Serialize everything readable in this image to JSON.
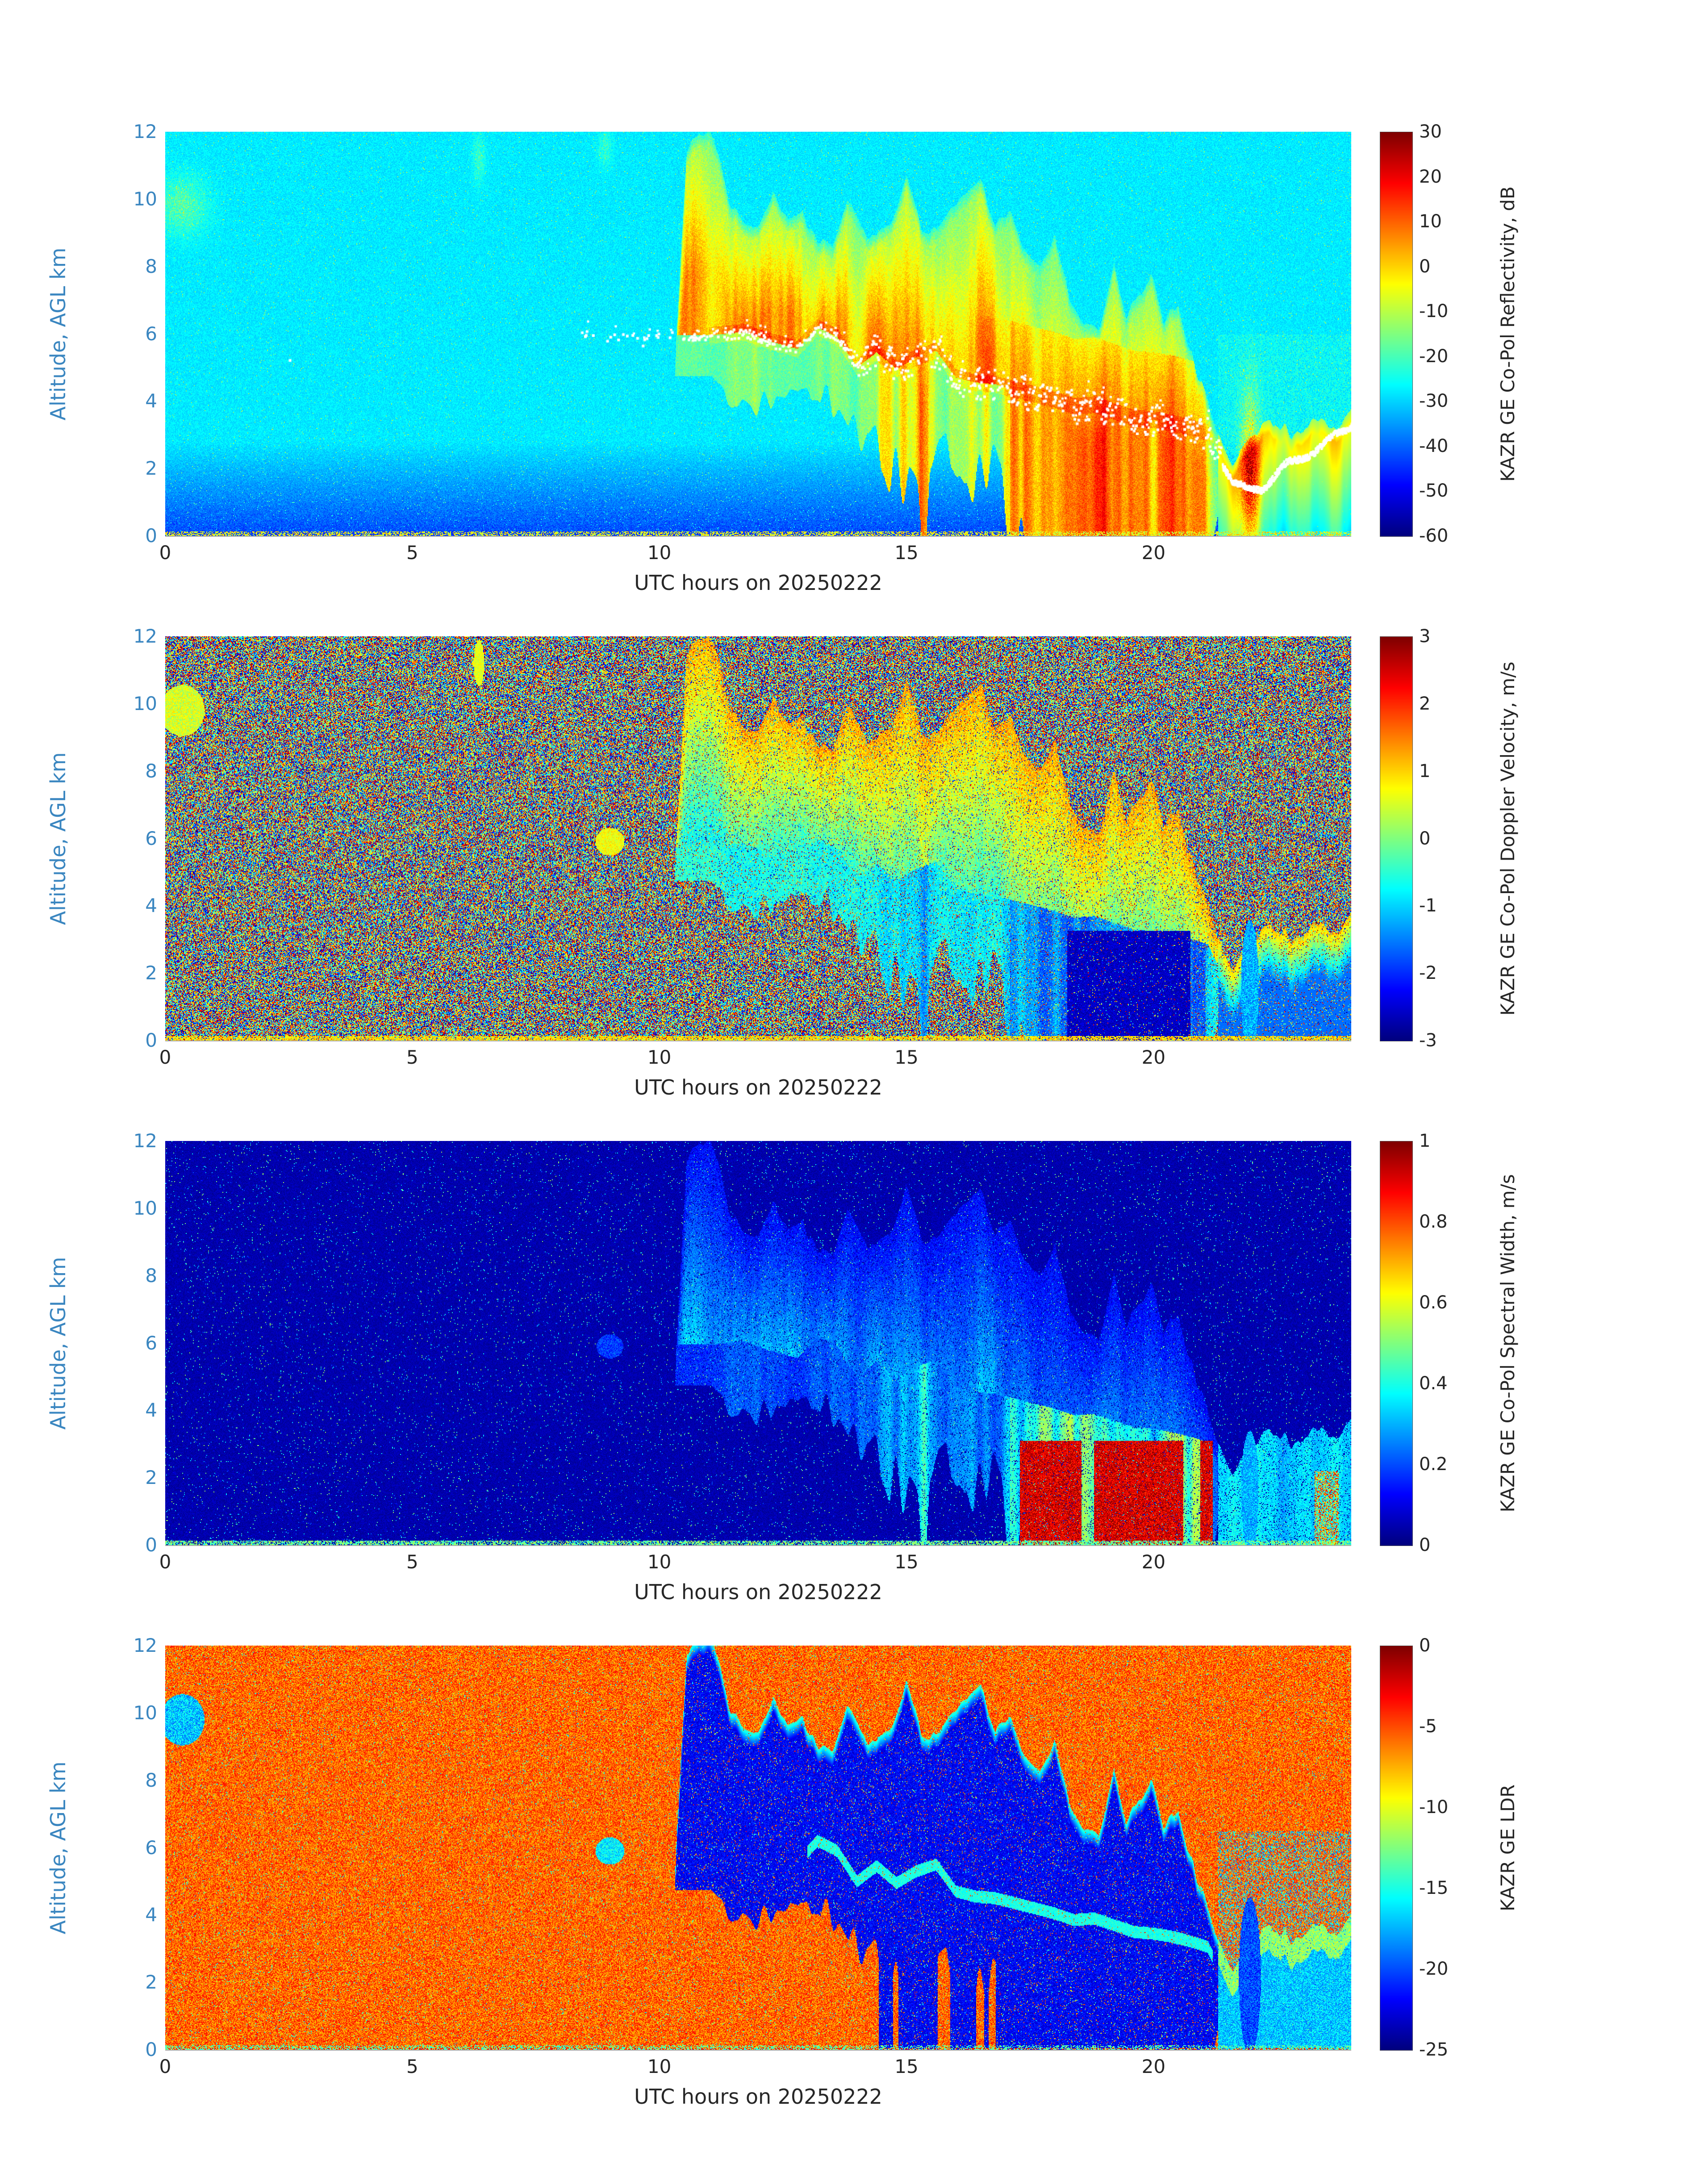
{
  "figure": {
    "background": "#ffffff",
    "y_axis_text_color": "#3a86c0",
    "x_axis_text_color": "#262626",
    "colormap": "jet"
  },
  "chart_data": [
    {
      "type": "heatmap",
      "kind": "reflectivity",
      "xlabel": "UTC hours on 20250222",
      "ylabel": "Altitude, AGL km",
      "colorbar_label": "KAZR GE Co-Pol Reflectivity, dB",
      "x_range": [
        0,
        24
      ],
      "y_range": [
        0,
        12
      ],
      "color_range": [
        -60,
        30
      ],
      "x_ticks": [
        0,
        5,
        10,
        15,
        20
      ],
      "y_ticks": [
        0,
        2,
        4,
        6,
        8,
        10,
        12
      ],
      "colorbar_ticks": [
        30,
        20,
        10,
        0,
        -10,
        -20,
        -30,
        -40,
        -50,
        -60
      ],
      "colormap": "jet",
      "features": [
        "Clear-air cyan background near -28 dB above 3 km",
        "Boundary-layer gradient darkening to about -45 dB below 2.5 km",
        "Cloud and precipitation system from 10.5 to 21.2 UTC with tops 8-12 km",
        "Yellow-orange reflectivity band (0 to +10 dB) around and above the melting layer",
        "Red convective cores +10 to +25 dB between 17 and 21 UTC below 6 km",
        "White melting-layer dots descending from 6 km near 8.5 UTC to 3 km near 21 UTC",
        "White cloud-base line dipping to 1.5 km at 21.6 UTC then rising to 3.4 km at 24 UTC",
        "Shallow orange-topped cloud below 3.5 km from 21.5 to 24 UTC",
        "Small cyan-green cloud patch near 0-0.7 UTC at 9-10.5 km"
      ]
    },
    {
      "type": "heatmap",
      "kind": "velocity",
      "xlabel": "UTC hours on 20250222",
      "ylabel": "Altitude, AGL km",
      "colorbar_label": "KAZR GE Co-Pol Doppler Velocity, m/s",
      "x_range": [
        0,
        24
      ],
      "y_range": [
        0,
        12
      ],
      "color_range": [
        -3,
        3
      ],
      "x_ticks": [
        0,
        5,
        10,
        15,
        20
      ],
      "y_ticks": [
        0,
        2,
        4,
        6,
        8,
        10,
        12
      ],
      "colorbar_ticks": [
        3,
        2,
        1,
        0,
        -1,
        -2,
        -3
      ],
      "colormap": "jet",
      "features": [
        "Full-range random speckle noise (-3 to +3 m/s) in clear air",
        "Coherent yellow-green velocities (+0.5 to +1.5 m/s) in cloud layer 10.5-21 UTC",
        "Cyan to blue (-0.5 to -2 m/s) in precipitation shafts below the melting layer",
        "Solid dark-blue block near -3 m/s from 18.3 to 20.7 UTC below 3 km",
        "Coherent green patch near 9 UTC at 6 km and near 0.5 UTC at 10 km"
      ]
    },
    {
      "type": "heatmap",
      "kind": "spectral_width",
      "xlabel": "UTC hours on 20250222",
      "ylabel": "Altitude, AGL km",
      "colorbar_label": "KAZR GE Co-Pol Spectral Width, m/s",
      "x_range": [
        0,
        24
      ],
      "y_range": [
        0,
        12
      ],
      "color_range": [
        0,
        1
      ],
      "x_ticks": [
        0,
        5,
        10,
        15,
        20
      ],
      "y_ticks": [
        0,
        2,
        4,
        6,
        8,
        10,
        12
      ],
      "colorbar_ticks": [
        1,
        0.8,
        0.6,
        0.4,
        0.2,
        0
      ],
      "colormap": "jet",
      "features": [
        "Dark-blue background near 0.05 m/s with sparse bright speckles",
        "Light-blue to cyan widths 0.2-0.4 m/s in the descending cloud band 10.5-21 UTC",
        "Dark-red blocks 0.85-1 m/s from 17.3 to 20.6 UTC below 3 km",
        "Cyan streaks below 3 km from 21.5 to 24 UTC"
      ]
    },
    {
      "type": "heatmap",
      "kind": "ldr",
      "xlabel": "UTC hours on 20250222",
      "ylabel": "Altitude, AGL km",
      "colorbar_label": "KAZR GE LDR",
      "x_range": [
        0,
        24
      ],
      "y_range": [
        0,
        12
      ],
      "color_range": [
        -25,
        0
      ],
      "x_ticks": [
        0,
        5,
        10,
        15,
        20
      ],
      "y_ticks": [
        0,
        2,
        4,
        6,
        8,
        10,
        12
      ],
      "colorbar_ticks": [
        0,
        -5,
        -10,
        -15,
        -20,
        -25
      ],
      "colormap": "jet",
      "features": [
        "Orange-red noise background near -4 to -8 dB in clear air",
        "Dark-blue LDR (-22 to -25 dB) within the cloud and precipitation system 10.5-21.2 UTC",
        "Cyan fringe (-14 to -16 dB) along cloud edges and at the melting layer",
        "Blue-cyan shallow layer below 6 km from 21.3 to 24 UTC",
        "Thin green-yellow surface line across the bottom of the panel"
      ]
    }
  ],
  "render_geometry": {
    "melt_line": [
      [
        0,
        6.05
      ],
      [
        8,
        6.05
      ],
      [
        8.3,
        6.0
      ],
      [
        9,
        5.95
      ],
      [
        9.6,
        5.8
      ],
      [
        10.2,
        5.95
      ],
      [
        11,
        5.95
      ],
      [
        11.7,
        6.05
      ],
      [
        12.3,
        5.75
      ],
      [
        12.8,
        5.55
      ],
      [
        13.2,
        6.2
      ],
      [
        13.6,
        5.9
      ],
      [
        14,
        5.0
      ],
      [
        14.4,
        5.45
      ],
      [
        14.8,
        4.95
      ],
      [
        15.2,
        5.3
      ],
      [
        15.6,
        5.5
      ],
      [
        16,
        4.7
      ],
      [
        16.4,
        4.55
      ],
      [
        16.8,
        4.5
      ],
      [
        17.2,
        4.35
      ],
      [
        17.6,
        4.2
      ],
      [
        18,
        4.05
      ],
      [
        18.4,
        3.85
      ],
      [
        18.8,
        3.9
      ],
      [
        19.2,
        3.7
      ],
      [
        19.6,
        3.5
      ],
      [
        20,
        3.45
      ],
      [
        20.4,
        3.35
      ],
      [
        20.8,
        3.2
      ],
      [
        21.1,
        3.05
      ],
      [
        21.35,
        2.3
      ],
      [
        21.6,
        1.55
      ],
      [
        21.9,
        1.4
      ],
      [
        22.2,
        1.5
      ],
      [
        22.6,
        2.05
      ],
      [
        23,
        2.4
      ],
      [
        23.4,
        2.7
      ],
      [
        23.8,
        3.15
      ],
      [
        24,
        3.4
      ]
    ],
    "cloud_top": [
      [
        0,
        0
      ],
      [
        10.2,
        0
      ],
      [
        10.35,
        6
      ],
      [
        10.55,
        11.5
      ],
      [
        10.8,
        12
      ],
      [
        11.1,
        11.8
      ],
      [
        11.4,
        10
      ],
      [
        11.7,
        9.4
      ],
      [
        12,
        9.2
      ],
      [
        12.3,
        10.1
      ],
      [
        12.6,
        9.3
      ],
      [
        12.9,
        9.5
      ],
      [
        13.2,
        8.8
      ],
      [
        13.5,
        8.5
      ],
      [
        13.8,
        9.9
      ],
      [
        14.1,
        9.1
      ],
      [
        14.4,
        8.8
      ],
      [
        14.7,
        9.4
      ],
      [
        15,
        10.7
      ],
      [
        15.3,
        9.1
      ],
      [
        15.6,
        9.0
      ],
      [
        15.9,
        9.7
      ],
      [
        16.2,
        10.1
      ],
      [
        16.5,
        10.5
      ],
      [
        16.8,
        9.3
      ],
      [
        17.1,
        9.5
      ],
      [
        17.4,
        8.6
      ],
      [
        17.7,
        8.1
      ],
      [
        18,
        8.8
      ],
      [
        18.3,
        7.0
      ],
      [
        18.6,
        6.3
      ],
      [
        18.9,
        6.1
      ],
      [
        19.2,
        8.0
      ],
      [
        19.45,
        6.4
      ],
      [
        19.7,
        7.2
      ],
      [
        19.95,
        7.8
      ],
      [
        20.2,
        6.4
      ],
      [
        20.5,
        7.0
      ],
      [
        20.75,
        5.4
      ],
      [
        21.05,
        4.2
      ],
      [
        21.3,
        3.0
      ],
      [
        21.6,
        2.2
      ],
      [
        21.9,
        2.8
      ],
      [
        22.2,
        3.2
      ],
      [
        22.5,
        3.4
      ],
      [
        22.8,
        3.0
      ],
      [
        23.1,
        3.3
      ],
      [
        23.4,
        3.5
      ],
      [
        23.7,
        3.1
      ],
      [
        24,
        3.6
      ]
    ],
    "rain_gate": [
      [
        11.0,
        0
      ],
      [
        11.6,
        0.15
      ],
      [
        12.5,
        0.35
      ],
      [
        13.5,
        0.5
      ],
      [
        15,
        0.7
      ],
      [
        16.8,
        1
      ],
      [
        21.05,
        1
      ],
      [
        21.35,
        0
      ],
      [
        24,
        0
      ]
    ],
    "extra_white_dots": [
      [
        2.5,
        5.25
      ]
    ],
    "panel_blobs": [
      [
        {
          "t": 0.35,
          "h": 9.8,
          "rt": 0.5,
          "rh": 0.85,
          "add": 13
        },
        {
          "t": 6.35,
          "h": 11.2,
          "rt": 0.12,
          "rh": 0.75,
          "add": 9
        },
        {
          "t": 8.9,
          "h": 11.5,
          "rt": 0.14,
          "rh": 0.55,
          "add": 8
        },
        {
          "t": 21.95,
          "h": 1.6,
          "rt": 0.2,
          "rh": 2.4,
          "add": 34
        }
      ],
      [
        {
          "t": 0.35,
          "h": 9.8,
          "rt": 0.5,
          "rh": 0.85,
          "set": 0.5,
          "jit": 0.9
        },
        {
          "t": 6.35,
          "h": 11.2,
          "rt": 0.12,
          "rh": 0.75,
          "set": 0.6,
          "jit": 0.6
        },
        {
          "t": 9.0,
          "h": 5.9,
          "rt": 0.33,
          "rh": 0.45,
          "set": 0.7,
          "jit": 0.7
        },
        {
          "t": 21.95,
          "h": 1.6,
          "rt": 0.2,
          "rh": 2.2,
          "set": -1.2,
          "jit": 1.0
        }
      ],
      [
        {
          "t": 9.0,
          "h": 5.9,
          "rt": 0.3,
          "rh": 0.4,
          "set": 0.18,
          "jit": 0.12
        },
        {
          "t": 21.95,
          "h": 1.6,
          "rt": 0.2,
          "rh": 2.0,
          "set": 0.3,
          "jit": 0.15
        }
      ],
      [
        {
          "t": 0.35,
          "h": 9.8,
          "rt": 0.5,
          "rh": 0.85,
          "set": -17,
          "jit": 5
        },
        {
          "t": 9.0,
          "h": 5.9,
          "rt": 0.33,
          "rh": 0.45,
          "set": -16,
          "jit": 4
        },
        {
          "t": 21.95,
          "h": 2.2,
          "rt": 0.25,
          "rh": 2.6,
          "set": -20,
          "jit": 4
        }
      ]
    ]
  }
}
